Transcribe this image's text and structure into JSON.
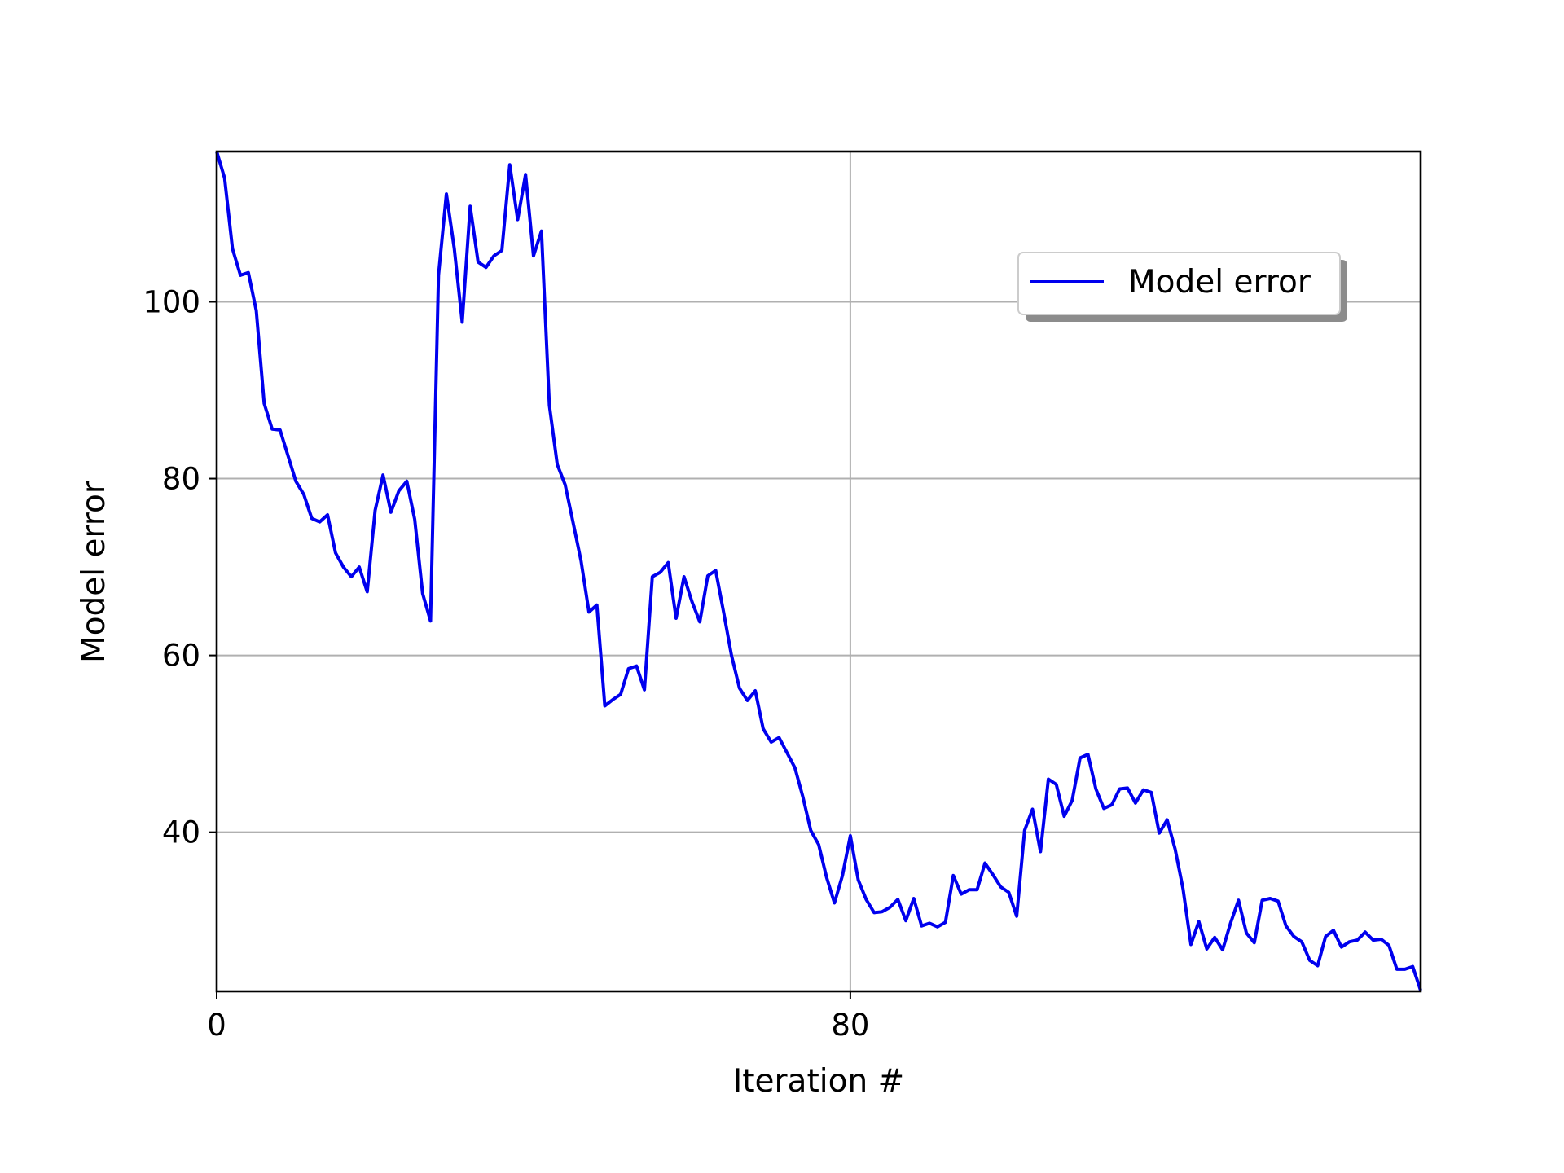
{
  "colors": {
    "series": "#0000ee",
    "grid": "#b0b0b0",
    "axes": "#000000",
    "legend_shadow": "#8c8c8c"
  },
  "chart_data": {
    "type": "line",
    "title": "",
    "xlabel": "Iteration #",
    "ylabel": "Model error",
    "xlim": [
      0,
      152
    ],
    "ylim": [
      22,
      117
    ],
    "xticks": [
      0,
      80
    ],
    "yticks": [
      40,
      60,
      80,
      100
    ],
    "grid": true,
    "legend": {
      "position": "upper-right",
      "shadow": true
    },
    "series": [
      {
        "name": "Model error",
        "color": "#0000ee",
        "x": [
          0,
          1,
          2,
          3,
          4,
          5,
          6,
          7,
          8,
          9,
          10,
          11,
          12,
          13,
          14,
          15,
          16,
          17,
          18,
          19,
          20,
          21,
          22,
          23,
          24,
          25,
          26,
          27,
          28,
          29,
          30,
          31,
          32,
          33,
          34,
          35,
          36,
          37,
          38,
          39,
          40,
          41,
          42,
          43,
          44,
          45,
          46,
          47,
          48,
          49,
          50,
          51,
          52,
          53,
          54,
          55,
          56,
          57,
          58,
          59,
          60,
          61,
          62,
          63,
          64,
          65,
          66,
          67,
          68,
          69,
          70,
          71,
          72,
          73,
          74,
          75,
          76,
          77,
          78,
          79,
          80,
          81,
          82,
          83,
          84,
          85,
          86,
          87,
          88,
          89,
          90,
          91,
          92,
          93,
          94,
          95,
          96,
          97,
          98,
          99,
          100,
          101,
          102,
          103,
          104,
          105,
          106,
          107,
          108,
          109,
          110,
          111,
          112,
          113,
          114,
          115,
          116,
          117,
          118,
          119,
          120,
          121,
          122,
          123,
          124,
          125,
          126,
          127,
          128,
          129,
          130,
          131,
          132,
          133,
          134,
          135,
          136,
          137,
          138,
          139,
          140,
          141,
          142,
          143,
          144,
          145,
          146,
          147,
          148,
          149,
          150,
          151,
          152
        ],
        "values": [
          117,
          114,
          106,
          103,
          103.3,
          99,
          88.5,
          85.6,
          85.5,
          82.6,
          79.7,
          78.2,
          75.5,
          75.1,
          75.9,
          71.6,
          70,
          68.9,
          70,
          67.2,
          76.4,
          80.4,
          76.2,
          78.6,
          79.7,
          75.4,
          67,
          63.9,
          103,
          112.2,
          106,
          97.7,
          110.8,
          104.5,
          103.9,
          105.2,
          105.8,
          115.5,
          109.3,
          114.4,
          105.2,
          108,
          88.3,
          81.6,
          79.3,
          75,
          70.7,
          64.9,
          65.7,
          54.3,
          55,
          55.6,
          58.5,
          58.8,
          56.1,
          68.9,
          69.4,
          70.5,
          64.2,
          68.9,
          66.1,
          63.8,
          69,
          69.6,
          64.9,
          60,
          56.3,
          54.9,
          56,
          51.7,
          50.2,
          50.7,
          49,
          47.3,
          44,
          40.2,
          38.6,
          34.9,
          32,
          35.1,
          39.6,
          34.6,
          32.4,
          30.9,
          31,
          31.5,
          32.4,
          30,
          32.5,
          29.4,
          29.7,
          29.3,
          29.8,
          35.1,
          33,
          33.5,
          33.5,
          36.5,
          35.2,
          33.8,
          33.2,
          30.5,
          40.2,
          42.6,
          37.8,
          46,
          45.4,
          41.8,
          43.6,
          48.4,
          48.8,
          44.9,
          42.7,
          43.1,
          44.9,
          45,
          43.3,
          44.8,
          44.5,
          39.9,
          41.4,
          38.1,
          33.6,
          27.3,
          29.9,
          26.8,
          28.1,
          26.7,
          29.7,
          32.3,
          28.6,
          27.5,
          32.3,
          32.5,
          32.2,
          29.4,
          28.2,
          27.6,
          25.5,
          24.9,
          28.2,
          28.9,
          27,
          27.6,
          27.8,
          28.7,
          27.8,
          27.9,
          27.2,
          24.5,
          24.5,
          24.8,
          22.1
        ]
      }
    ]
  }
}
